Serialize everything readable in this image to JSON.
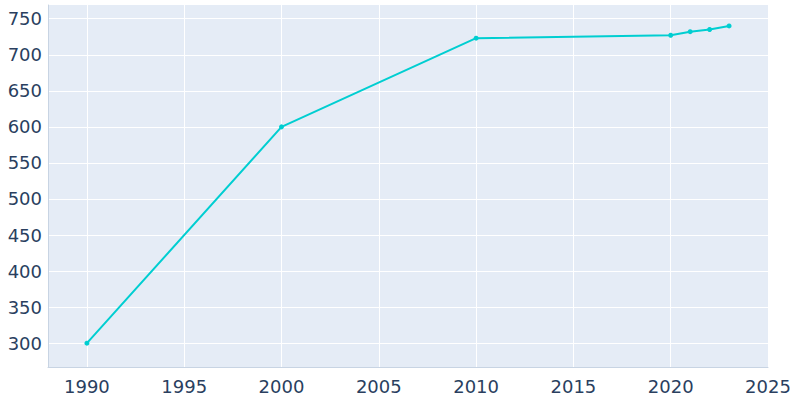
{
  "chart_data": {
    "type": "line",
    "x": [
      1990,
      2000,
      2010,
      2020,
      2021,
      2022,
      2023
    ],
    "values": [
      300,
      600,
      723,
      727,
      732,
      735,
      740
    ],
    "color": "#00ced1",
    "marker": "circle",
    "xlim": [
      1988,
      2025
    ],
    "xticks": [
      1990,
      1995,
      2000,
      2005,
      2010,
      2015,
      2020,
      2025
    ],
    "ylim": [
      267,
      769
    ],
    "yticks": [
      300,
      350,
      400,
      450,
      500,
      550,
      600,
      650,
      700,
      750
    ],
    "grid": true
  }
}
